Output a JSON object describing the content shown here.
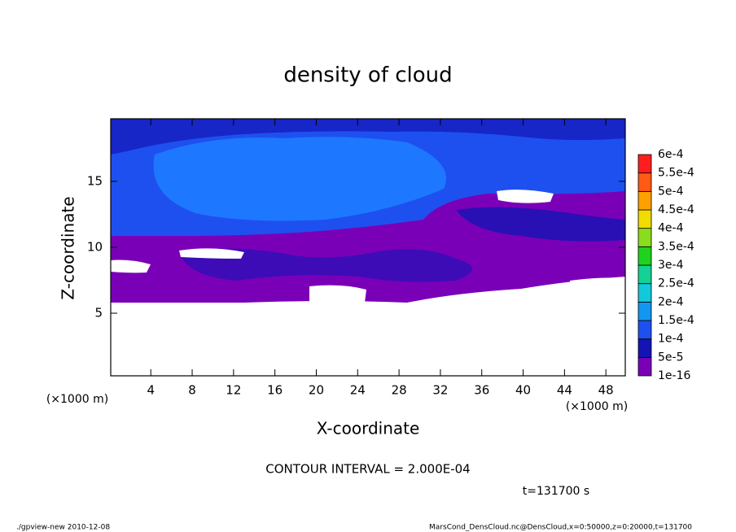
{
  "chart_data": {
    "type": "contour",
    "title": "density of cloud",
    "xlabel": "X-coordinate",
    "ylabel": "Z-coordinate",
    "xunit": "(×1000 m)",
    "yunit": "(×1000 m)",
    "xlim": [
      0.125,
      49.875
    ],
    "ylim": [
      0.25,
      19.75
    ],
    "xticks": [
      4,
      8,
      12,
      16,
      20,
      24,
      28,
      32,
      36,
      40,
      44,
      48
    ],
    "yticks": [
      5,
      10,
      15
    ],
    "colorbar": {
      "levels": [
        {
          "value": 1e-16,
          "label": "1e-16"
        },
        {
          "value": 5e-05,
          "label": "5e-5"
        },
        {
          "value": 0.0001,
          "label": "1e-4"
        },
        {
          "value": 0.00015,
          "label": "1.5e-4"
        },
        {
          "value": 0.0002,
          "label": "2e-4"
        },
        {
          "value": 0.00025,
          "label": "2.5e-4"
        },
        {
          "value": 0.0003,
          "label": "3e-4"
        },
        {
          "value": 0.00035,
          "label": "3.5e-4"
        },
        {
          "value": 0.0004,
          "label": "4e-4"
        },
        {
          "value": 0.00045,
          "label": "4.5e-4"
        },
        {
          "value": 0.0005,
          "label": "5e-4"
        },
        {
          "value": 0.00055,
          "label": "5.5e-4"
        },
        {
          "value": 0.0006,
          "label": "6e-4"
        }
      ],
      "colors": [
        "#7a00b8",
        "#1414b4",
        "#1e50f0",
        "#1496f0",
        "#14c8dc",
        "#14d296",
        "#1ed21e",
        "#8cdc1e",
        "#f0dc00",
        "#ffa000",
        "#ff5a14",
        "#ff1e1e",
        "#ff8c8c"
      ]
    },
    "contour_interval": "CONTOUR INTERVAL = 2.000E-04",
    "time_label": "t=131700 s",
    "footer_left": "./gpview-new  2010-12-08",
    "footer_right": "MarsCond_DensCloud.nc@DensCloud,x=0:50000,z=0:20000,t=131700"
  }
}
